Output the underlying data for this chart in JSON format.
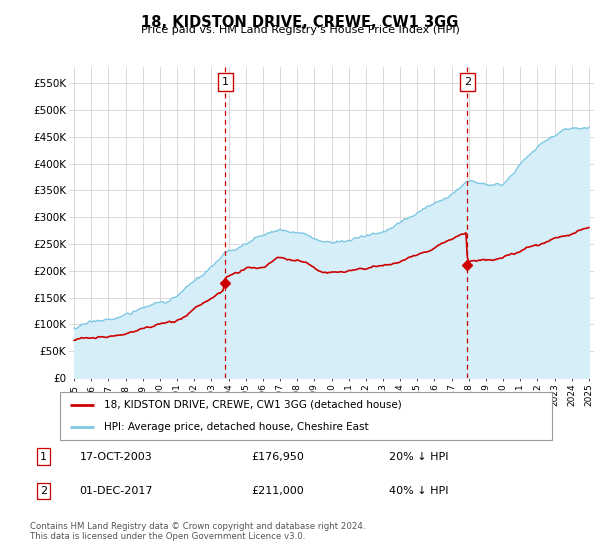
{
  "title": "18, KIDSTON DRIVE, CREWE, CW1 3GG",
  "subtitle": "Price paid vs. HM Land Registry's House Price Index (HPI)",
  "ylabel_ticks": [
    "£0",
    "£50K",
    "£100K",
    "£150K",
    "£200K",
    "£250K",
    "£300K",
    "£350K",
    "£400K",
    "£450K",
    "£500K",
    "£550K"
  ],
  "ytick_values": [
    0,
    50000,
    100000,
    150000,
    200000,
    250000,
    300000,
    350000,
    400000,
    450000,
    500000,
    550000
  ],
  "ylim": [
    0,
    580000
  ],
  "xlim_left": 1994.7,
  "xlim_right": 2025.3,
  "hpi_color": "#7ec8e3",
  "hpi_fill_color": "#d6eef8",
  "price_color": "#cc0000",
  "marker1_x_year": 2003.8,
  "marker1_y": 176950,
  "marker2_x_year": 2017.92,
  "marker2_y": 211000,
  "legend_label1": "18, KIDSTON DRIVE, CREWE, CW1 3GG (detached house)",
  "legend_label2": "HPI: Average price, detached house, Cheshire East",
  "table_row1_num": "1",
  "table_row1_date": "17-OCT-2003",
  "table_row1_price": "£176,950",
  "table_row1_hpi": "20% ↓ HPI",
  "table_row2_num": "2",
  "table_row2_date": "01-DEC-2017",
  "table_row2_price": "£211,000",
  "table_row2_hpi": "40% ↓ HPI",
  "footer": "Contains HM Land Registry data © Crown copyright and database right 2024.\nThis data is licensed under the Open Government Licence v3.0.",
  "bg_color": "#ffffff",
  "grid_color": "#cccccc"
}
